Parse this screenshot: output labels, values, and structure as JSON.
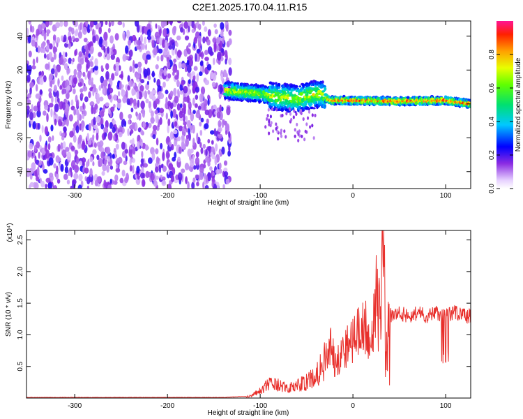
{
  "title": "C2E1.2025.170.04.11.R15",
  "chart_data": [
    {
      "type": "heatmap",
      "xlabel": "Height of straight line (km)",
      "ylabel": "Frequency (Hz)",
      "xlim": [
        -352,
        127
      ],
      "ylim": [
        -50,
        49
      ],
      "x_ticks": [
        -300,
        -200,
        -100,
        0,
        100
      ],
      "y_ticks": [
        -40,
        -20,
        0,
        20,
        40
      ],
      "colorbar": {
        "label": "Normalized spectral amplitude",
        "range": [
          0,
          1
        ],
        "ticks": [
          0.0,
          0.2,
          0.4,
          0.6,
          0.8
        ],
        "tick_labels": [
          "0.0",
          "0.2",
          "0.4",
          "0.6",
          "0.8"
        ]
      },
      "regions": [
        {
          "x_range": [
            -352,
            -132
          ],
          "y_range": [
            -50,
            49
          ],
          "description_level": "broadband noise, amplitude 0.1-0.3"
        },
        {
          "x_range": [
            -138,
            -30
          ],
          "center_freq_hz": [
            8,
            0
          ],
          "spread_hz": 6,
          "amplitude": [
            0.3,
            0.7
          ]
        },
        {
          "x_range": [
            -30,
            127
          ],
          "center_freq_hz": [
            2,
            1
          ],
          "spread_hz": 2,
          "amplitude": [
            0.6,
            0.95
          ]
        }
      ],
      "ridge": {
        "x": [
          -138,
          -120,
          -100,
          -80,
          -60,
          -45,
          -35,
          -25,
          0,
          50,
          100,
          127
        ],
        "y": [
          8,
          7,
          6,
          4,
          3,
          5,
          6,
          2,
          2,
          1.5,
          2,
          0
        ]
      }
    },
    {
      "type": "line",
      "xlabel": "Height of straight line (km)",
      "ylabel": "SNR (10 * v/v)",
      "y_multiplier": "(x10⁴)",
      "xlim": [
        -352,
        127
      ],
      "ylim": [
        0,
        2.65
      ],
      "x_ticks": [
        -300,
        -200,
        -100,
        0,
        100
      ],
      "y_ticks": [
        0.5,
        1.0,
        1.5,
        2.0,
        2.5
      ],
      "y_tick_labels": [
        "0.5",
        "1.0",
        "1.5",
        "2.0",
        "2.5"
      ],
      "series": [
        {
          "color": "#e8302c",
          "x": [
            -352,
            -300,
            -200,
            -140,
            -110,
            -100,
            -90,
            -80,
            -70,
            -60,
            -50,
            -40,
            -30,
            -25,
            -20,
            -10,
            0,
            10,
            20,
            25,
            30,
            32,
            34,
            36,
            40,
            50,
            60,
            70,
            80,
            90,
            100,
            110,
            120,
            127
          ],
          "y": [
            0.01,
            0.01,
            0.01,
            0.01,
            0.03,
            0.12,
            0.22,
            0.2,
            0.15,
            0.2,
            0.25,
            0.35,
            0.6,
            0.9,
            0.6,
            0.75,
            0.95,
            1.05,
            1.15,
            1.2,
            1.35,
            2.5,
            1.8,
            1.0,
            1.3,
            1.35,
            1.3,
            1.35,
            1.3,
            1.35,
            1.3,
            1.35,
            1.3,
            1.3
          ]
        }
      ]
    }
  ]
}
